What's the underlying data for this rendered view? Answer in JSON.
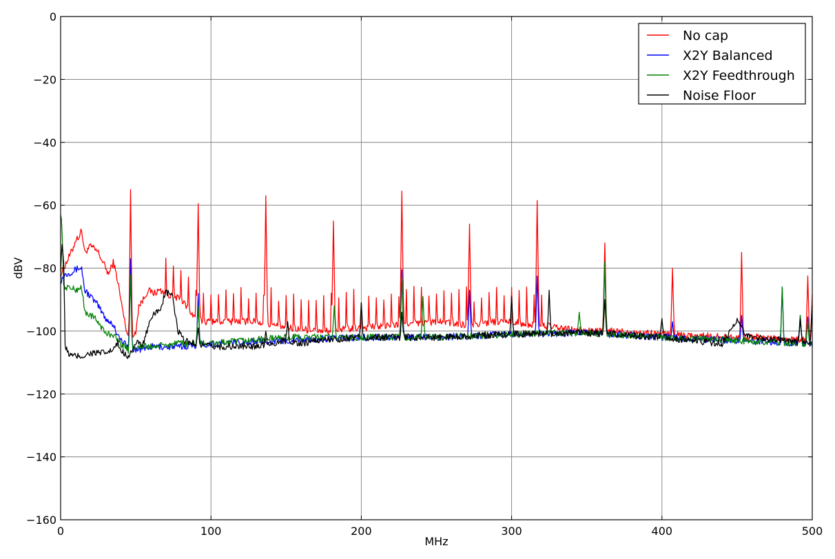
{
  "chart_data": {
    "type": "line",
    "title": "",
    "xlabel": "MHz",
    "ylabel": "dBV",
    "xlim": [
      0,
      500
    ],
    "ylim": [
      -160,
      0
    ],
    "xticks": [
      0,
      100,
      200,
      300,
      400,
      500
    ],
    "yticks": [
      0,
      -20,
      -40,
      -60,
      -80,
      -100,
      -120,
      -140,
      -160
    ],
    "grid": true,
    "legend_position": "top-right",
    "series": [
      {
        "name": "No cap",
        "color": "#ff0000",
        "baseline": [
          [
            0,
            -82
          ],
          [
            2,
            -80
          ],
          [
            5,
            -77
          ],
          [
            8,
            -74
          ],
          [
            10,
            -71
          ],
          [
            12,
            -70
          ],
          [
            14,
            -68
          ],
          [
            16,
            -75
          ],
          [
            20,
            -73
          ],
          [
            25,
            -75
          ],
          [
            28,
            -78
          ],
          [
            32,
            -82
          ],
          [
            35,
            -78
          ],
          [
            38,
            -84
          ],
          [
            40,
            -90
          ],
          [
            43,
            -98
          ],
          [
            46,
            -104
          ],
          [
            50,
            -100
          ],
          [
            52,
            -92
          ],
          [
            55,
            -90
          ],
          [
            58,
            -87
          ],
          [
            62,
            -88
          ],
          [
            66,
            -87
          ],
          [
            70,
            -88
          ],
          [
            75,
            -89
          ],
          [
            80,
            -90
          ],
          [
            85,
            -93
          ],
          [
            90,
            -96
          ],
          [
            95,
            -97
          ],
          [
            100,
            -97
          ],
          [
            110,
            -97
          ],
          [
            120,
            -97
          ],
          [
            130,
            -97
          ],
          [
            150,
            -99
          ],
          [
            175,
            -100
          ],
          [
            200,
            -99
          ],
          [
            225,
            -98
          ],
          [
            250,
            -97
          ],
          [
            270,
            -98
          ],
          [
            290,
            -97
          ],
          [
            300,
            -97
          ],
          [
            310,
            -98
          ],
          [
            320,
            -98
          ],
          [
            330,
            -99
          ],
          [
            350,
            -100
          ],
          [
            370,
            -100
          ],
          [
            400,
            -101
          ],
          [
            450,
            -102
          ],
          [
            470,
            -102
          ],
          [
            500,
            -103
          ]
        ],
        "spikes": [
          [
            46.5,
            -55
          ],
          [
            91.5,
            -59.5
          ],
          [
            136.5,
            -57
          ],
          [
            181.5,
            -65
          ],
          [
            227,
            -55.5
          ],
          [
            272,
            -66
          ],
          [
            317,
            -58.5
          ],
          [
            362,
            -72
          ],
          [
            407,
            -80
          ],
          [
            453,
            -75
          ],
          [
            497,
            -82.5
          ],
          [
            500,
            -88.5
          ]
        ],
        "ripple_period": 5,
        "ripple_depth": 12,
        "ripple_range": [
          70,
          320
        ]
      },
      {
        "name": "X2Y Balanced",
        "color": "#0000ff",
        "baseline": [
          [
            0,
            -84
          ],
          [
            3,
            -82
          ],
          [
            8,
            -81
          ],
          [
            12,
            -80
          ],
          [
            14,
            -80
          ],
          [
            16,
            -87
          ],
          [
            20,
            -89
          ],
          [
            25,
            -92
          ],
          [
            30,
            -96
          ],
          [
            35,
            -98
          ],
          [
            40,
            -103
          ],
          [
            45,
            -105
          ],
          [
            50,
            -106
          ],
          [
            60,
            -105
          ],
          [
            80,
            -105
          ],
          [
            100,
            -104
          ],
          [
            150,
            -103
          ],
          [
            200,
            -102
          ],
          [
            250,
            -102
          ],
          [
            300,
            -101
          ],
          [
            350,
            -100.5
          ],
          [
            400,
            -102
          ],
          [
            450,
            -103
          ],
          [
            500,
            -104
          ]
        ],
        "spikes": [
          [
            46.5,
            -77
          ],
          [
            91.5,
            -88
          ],
          [
            227,
            -80.5
          ],
          [
            272,
            -87
          ],
          [
            317,
            -82.5
          ],
          [
            362,
            -78
          ],
          [
            407,
            -97
          ],
          [
            453,
            -95
          ],
          [
            480,
            -86
          ],
          [
            492,
            -95
          ],
          [
            497,
            -95.5
          ]
        ]
      },
      {
        "name": "X2Y Feedthrough",
        "color": "#008000",
        "baseline": [
          [
            0,
            -62
          ],
          [
            1,
            -68
          ],
          [
            2,
            -86
          ],
          [
            5,
            -86
          ],
          [
            10,
            -87
          ],
          [
            14,
            -86
          ],
          [
            16,
            -94
          ],
          [
            20,
            -95
          ],
          [
            25,
            -97
          ],
          [
            30,
            -101
          ],
          [
            35,
            -101
          ],
          [
            40,
            -104
          ],
          [
            45,
            -106
          ],
          [
            50,
            -105
          ],
          [
            60,
            -105
          ],
          [
            80,
            -104
          ],
          [
            100,
            -104
          ],
          [
            150,
            -102
          ],
          [
            200,
            -102
          ],
          [
            250,
            -102
          ],
          [
            300,
            -101
          ],
          [
            350,
            -100.5
          ],
          [
            400,
            -102
          ],
          [
            450,
            -103
          ],
          [
            500,
            -104
          ]
        ],
        "spikes": [
          [
            46.5,
            -82
          ],
          [
            91.5,
            -92
          ],
          [
            182,
            -92
          ],
          [
            227,
            -83
          ],
          [
            241,
            -89
          ],
          [
            345,
            -94
          ],
          [
            362,
            -78
          ],
          [
            480,
            -86
          ],
          [
            492,
            -95
          ],
          [
            497,
            -97
          ]
        ]
      },
      {
        "name": "Noise Floor",
        "color": "#000000",
        "baseline": [
          [
            0,
            -80
          ],
          [
            1,
            -72
          ],
          [
            2,
            -78
          ],
          [
            3,
            -105
          ],
          [
            5,
            -107
          ],
          [
            8,
            -108
          ],
          [
            10,
            -108
          ],
          [
            15,
            -108
          ],
          [
            20,
            -107
          ],
          [
            25,
            -107
          ],
          [
            30,
            -107
          ],
          [
            35,
            -106
          ],
          [
            38,
            -104
          ],
          [
            40,
            -106
          ],
          [
            45,
            -108
          ],
          [
            50,
            -104
          ],
          [
            55,
            -104
          ],
          [
            58,
            -99
          ],
          [
            62,
            -95
          ],
          [
            66,
            -93
          ],
          [
            70,
            -88
          ],
          [
            74,
            -88
          ],
          [
            78,
            -100
          ],
          [
            82,
            -103
          ],
          [
            90,
            -104
          ],
          [
            100,
            -105
          ],
          [
            110,
            -105
          ],
          [
            125,
            -105
          ],
          [
            140,
            -104
          ],
          [
            150,
            -103
          ],
          [
            160,
            -104
          ],
          [
            170,
            -103
          ],
          [
            200,
            -102
          ],
          [
            250,
            -102
          ],
          [
            300,
            -101
          ],
          [
            350,
            -100.5
          ],
          [
            400,
            -102
          ],
          [
            440,
            -104
          ],
          [
            450,
            -97
          ],
          [
            455,
            -101
          ],
          [
            460,
            -102
          ],
          [
            500,
            -104
          ]
        ],
        "spikes": [
          [
            91.5,
            -99
          ],
          [
            136.5,
            -100
          ],
          [
            151,
            -97
          ],
          [
            200,
            -91
          ],
          [
            227,
            -94
          ],
          [
            300,
            -89
          ],
          [
            325,
            -87
          ],
          [
            362,
            -90
          ],
          [
            400,
            -96
          ],
          [
            492,
            -96
          ],
          [
            500,
            -92
          ]
        ]
      }
    ]
  }
}
